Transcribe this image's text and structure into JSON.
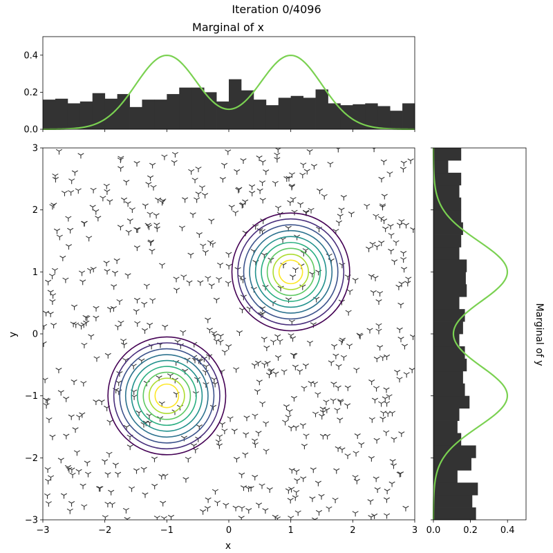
{
  "figure_title": "Iteration 0/4096",
  "colors": {
    "hist_fill": "#333333",
    "density_line": "#7ad151",
    "scatter_marker": "#333333",
    "contour_levels": [
      "#440154",
      "#472d7b",
      "#3b528b",
      "#2c728e",
      "#21918c",
      "#28ae80",
      "#5ec962",
      "#addc30",
      "#fde725"
    ]
  },
  "chart_data": [
    {
      "id": "marginal-x",
      "type": "bar",
      "title": "Marginal of x",
      "xlabel": "",
      "ylabel": "",
      "xlim": [
        -3,
        3
      ],
      "ylim": [
        0,
        0.5
      ],
      "yticks": [
        "0.0",
        "0.2",
        "0.4"
      ],
      "bin_edges": [
        -3.0,
        -2.8,
        -2.6,
        -2.4,
        -2.2,
        -2.0,
        -1.8,
        -1.6,
        -1.4,
        -1.2,
        -1.0,
        -0.8,
        -0.6,
        -0.4,
        -0.2,
        0.0,
        0.2,
        0.4,
        0.6,
        0.8,
        1.0,
        1.2,
        1.4,
        1.6,
        1.8,
        2.0,
        2.2,
        2.4,
        2.6,
        2.8,
        3.0
      ],
      "values": [
        0.16,
        0.165,
        0.14,
        0.15,
        0.195,
        0.165,
        0.19,
        0.12,
        0.16,
        0.16,
        0.19,
        0.225,
        0.225,
        0.2,
        0.15,
        0.27,
        0.21,
        0.16,
        0.13,
        0.17,
        0.18,
        0.17,
        0.215,
        0.14,
        0.13,
        0.135,
        0.14,
        0.125,
        0.1,
        0.14
      ],
      "series": [
        {
          "name": "",
          "kind": "line",
          "function": "mixture of N(-1, 0.5²) and N(1, 0.5²), equal weights",
          "peak": 0.45
        }
      ]
    },
    {
      "id": "joint",
      "type": "scatter",
      "xlabel": "x",
      "ylabel": "y",
      "xlim": [
        -3,
        3
      ],
      "ylim": [
        -3,
        3
      ],
      "xticks": [
        "−3",
        "−2",
        "−1",
        "0",
        "1",
        "2",
        "3"
      ],
      "yticks": [
        "−3",
        "−2",
        "−1",
        "0",
        "1",
        "2",
        "3"
      ],
      "marker": "tri_down",
      "points": "about 600 points drawn uniformly over [−3, 3] × [−3, 3]",
      "contours": [
        {
          "center": [
            1,
            1
          ],
          "levels": 9,
          "radius_range": [
            0.19,
            0.95
          ]
        },
        {
          "center": [
            -1,
            -1
          ],
          "levels": 9,
          "radius_range": [
            0.19,
            0.95
          ]
        }
      ]
    },
    {
      "id": "marginal-y",
      "type": "bar",
      "orientation": "horizontal",
      "ylabel": "Marginal of y",
      "xlim": [
        0,
        0.5
      ],
      "ylim": [
        -3,
        3
      ],
      "xticks": [
        "0.0",
        "0.2",
        "0.4"
      ],
      "bin_edges": [
        -3.0,
        -2.8,
        -2.6,
        -2.4,
        -2.2,
        -2.0,
        -1.8,
        -1.6,
        -1.4,
        -1.2,
        -1.0,
        -0.8,
        -0.6,
        -0.4,
        -0.2,
        0.0,
        0.2,
        0.4,
        0.6,
        0.8,
        1.0,
        1.2,
        1.4,
        1.6,
        1.8,
        2.0,
        2.2,
        2.4,
        2.6,
        2.8,
        3.0
      ],
      "values": [
        0.23,
        0.21,
        0.24,
        0.13,
        0.205,
        0.23,
        0.15,
        0.13,
        0.14,
        0.195,
        0.17,
        0.16,
        0.18,
        0.17,
        0.14,
        0.16,
        0.17,
        0.14,
        0.18,
        0.175,
        0.18,
        0.14,
        0.15,
        0.16,
        0.15,
        0.15,
        0.14,
        0.15,
        0.08,
        0.15
      ],
      "series": [
        {
          "name": "",
          "kind": "line",
          "function": "mixture of N(-1, 0.5²) and N(1, 0.5²), equal weights",
          "peak": 0.45
        }
      ]
    }
  ]
}
